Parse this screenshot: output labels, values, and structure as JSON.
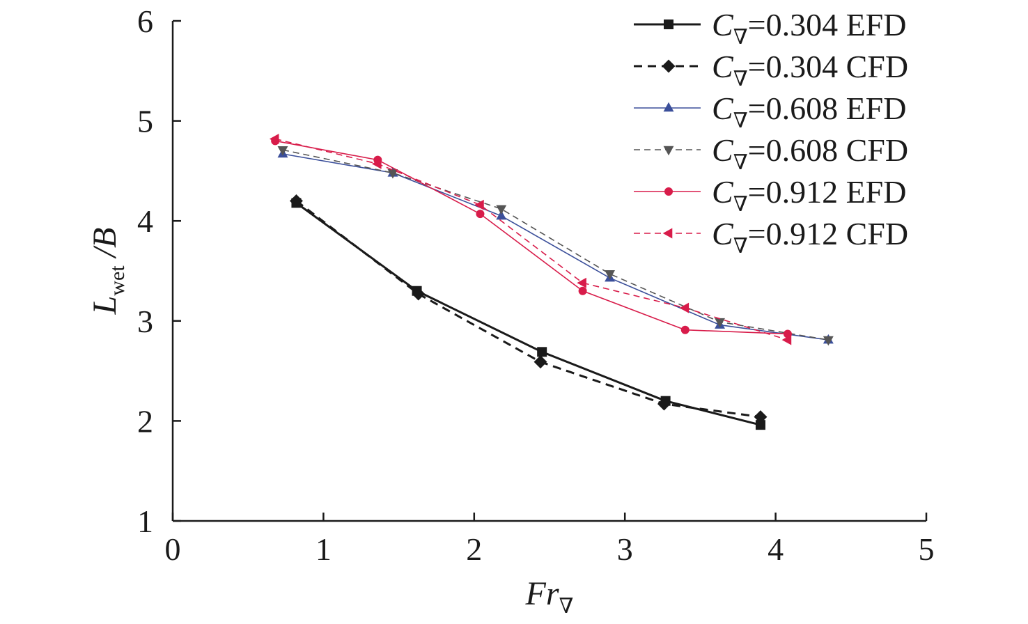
{
  "chart_data": {
    "type": "line",
    "title": "",
    "xlabel": {
      "main": "Fr",
      "sub": "∇"
    },
    "ylabel": {
      "main": "L",
      "sub": "wet",
      "suffix": " /B"
    },
    "xlim": [
      0,
      5
    ],
    "ylim": [
      1,
      6
    ],
    "xticks": [
      0,
      1,
      2,
      3,
      4,
      5
    ],
    "yticks": [
      1,
      2,
      3,
      4,
      5,
      6
    ],
    "grid": false,
    "legend_position": "top-right",
    "series": [
      {
        "name": "C∇=0.304 EFD",
        "legend": {
          "symbol": "C",
          "sub": "∇",
          "rest": "=0.304 EFD"
        },
        "color": "#1a1a1a",
        "dash": "solid",
        "marker": "square",
        "width": 3,
        "x": [
          0.82,
          1.62,
          2.45,
          3.27,
          3.9
        ],
        "y": [
          4.18,
          3.3,
          2.69,
          2.2,
          1.96
        ]
      },
      {
        "name": "C∇=0.304 CFD",
        "legend": {
          "symbol": "C",
          "sub": "∇",
          "rest": "=0.304 CFD"
        },
        "color": "#1a1a1a",
        "dash": "dashed",
        "marker": "diamond",
        "width": 3,
        "x": [
          0.82,
          1.63,
          2.44,
          3.26,
          3.9
        ],
        "y": [
          4.2,
          3.27,
          2.59,
          2.17,
          2.04
        ]
      },
      {
        "name": "C∇=0.608 EFD",
        "legend": {
          "symbol": "C",
          "sub": "∇",
          "rest": "=0.608 EFD"
        },
        "color": "#3b4f9a",
        "dash": "solid",
        "marker": "triangle-up",
        "width": 1.6,
        "x": [
          0.73,
          1.46,
          2.18,
          2.9,
          3.63,
          4.35
        ],
        "y": [
          4.67,
          4.48,
          4.05,
          3.43,
          2.96,
          2.81
        ]
      },
      {
        "name": "C∇=0.608 CFD",
        "legend": {
          "symbol": "C",
          "sub": "∇",
          "rest": "=0.608 CFD"
        },
        "color": "#555555",
        "dash": "dashed",
        "marker": "triangle-down",
        "width": 1.6,
        "x": [
          0.73,
          1.46,
          2.18,
          2.9,
          3.63,
          4.35
        ],
        "y": [
          4.71,
          4.48,
          4.12,
          3.47,
          2.99,
          2.81
        ]
      },
      {
        "name": "C∇=0.912 EFD",
        "legend": {
          "symbol": "C",
          "sub": "∇",
          "rest": "=0.912 EFD"
        },
        "color": "#d81c4a",
        "dash": "solid",
        "marker": "circle",
        "width": 1.6,
        "x": [
          0.68,
          1.36,
          2.04,
          2.72,
          3.4,
          4.08
        ],
        "y": [
          4.8,
          4.61,
          4.07,
          3.3,
          2.91,
          2.87
        ]
      },
      {
        "name": "C∇=0.912 CFD",
        "legend": {
          "symbol": "C",
          "sub": "∇",
          "rest": "=0.912 CFD"
        },
        "color": "#d81c4a",
        "dash": "dashed",
        "marker": "triangle-left",
        "width": 1.6,
        "x": [
          0.68,
          1.36,
          2.04,
          2.72,
          3.4,
          4.08
        ],
        "y": [
          4.82,
          4.57,
          4.16,
          3.38,
          3.13,
          2.81
        ]
      }
    ]
  }
}
